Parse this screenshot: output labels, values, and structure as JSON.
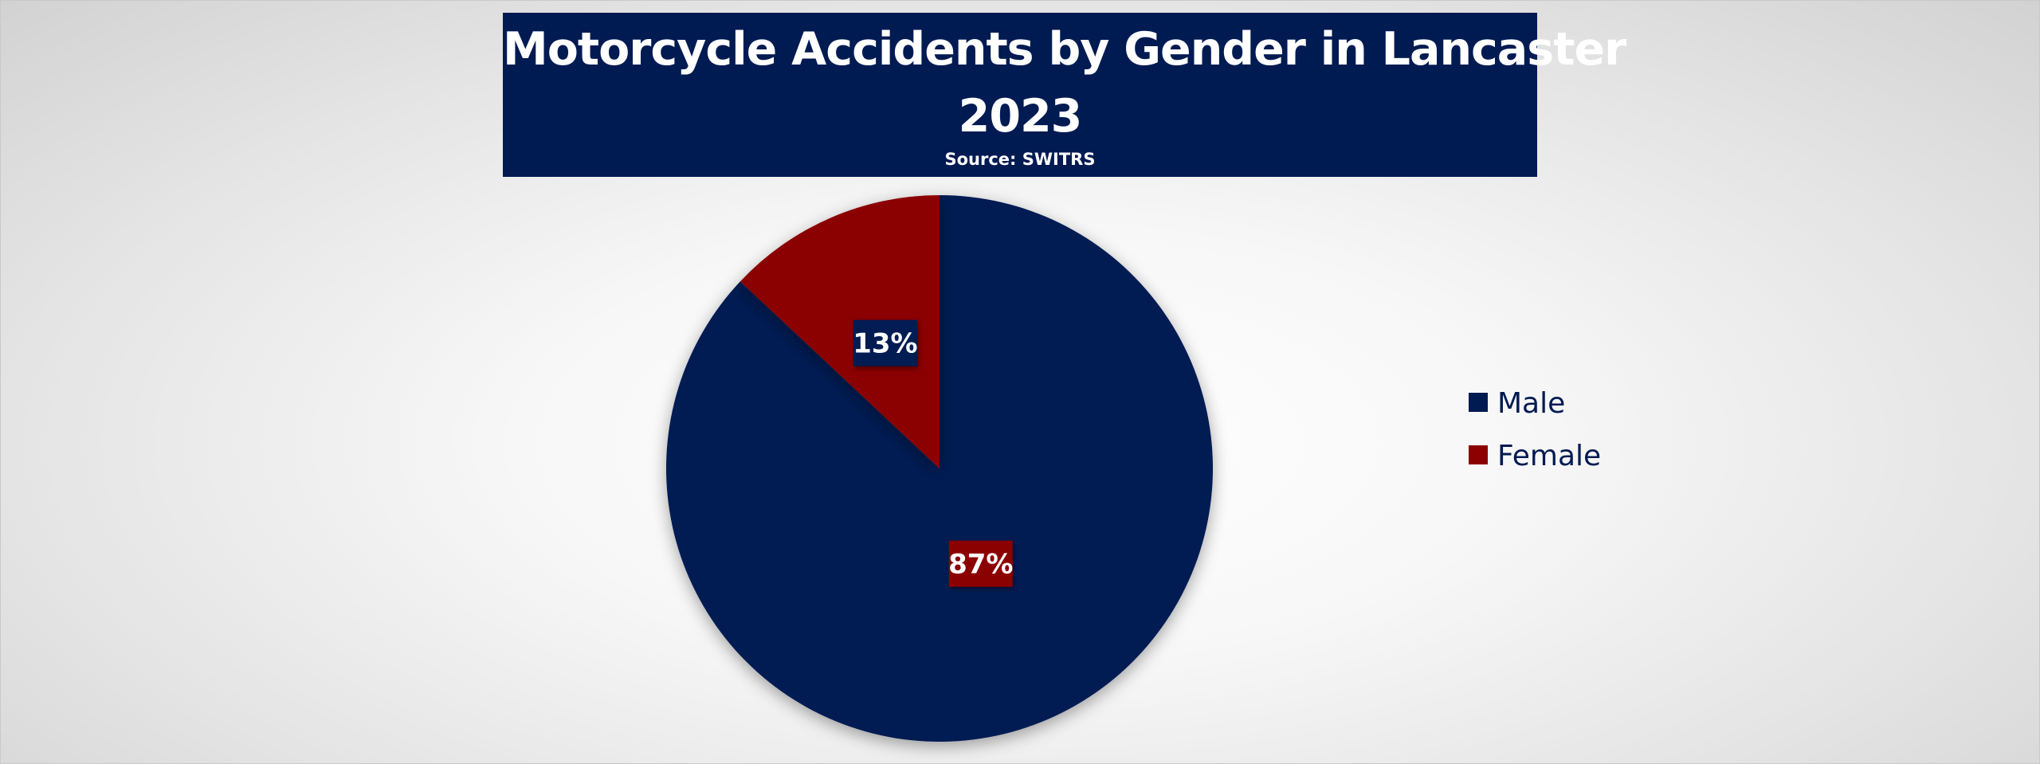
{
  "chart_data": {
    "type": "pie",
    "title": "Motorcycle Accidents by Gender in Lancaster 2023",
    "title_lines": [
      "Motorcycle Accidents by Gender in Lancaster",
      "2023"
    ],
    "subtitle": "Source: SWITRS",
    "series": [
      {
        "name": "",
        "categories": [
          "Male",
          "Female"
        ],
        "values": [
          87,
          13
        ],
        "labels": [
          "87%",
          "13%"
        ],
        "colors": [
          "#001a52",
          "#8b0000"
        ],
        "label_box_colors": [
          "#8b0000",
          "#001a52"
        ]
      }
    ],
    "legend": {
      "placement": "right",
      "entries": [
        "Male",
        "Female"
      ]
    },
    "start": "12 o'clock",
    "direction": "clockwise"
  }
}
